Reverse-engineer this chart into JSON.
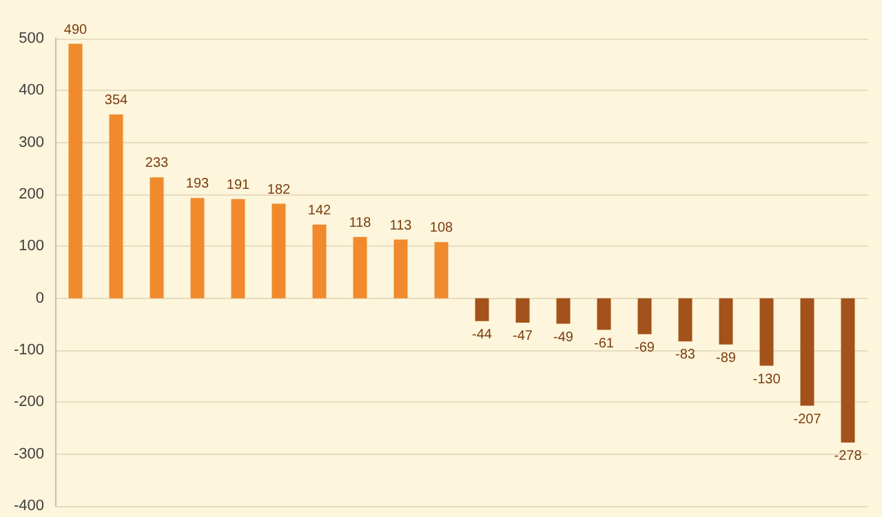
{
  "chart_data": {
    "type": "bar",
    "categories": [
      null,
      null,
      null,
      null,
      null,
      null,
      null,
      null,
      null,
      null,
      null,
      null,
      null,
      null,
      null,
      null,
      null,
      null,
      null,
      null
    ],
    "values": [
      490,
      354,
      233,
      193,
      191,
      182,
      142,
      118,
      113,
      108,
      -44,
      -47,
      -49,
      -61,
      -69,
      -83,
      -89,
      -130,
      -207,
      -278
    ],
    "colors": [
      "#f08a2c",
      "#f08a2c",
      "#f08a2c",
      "#f08a2c",
      "#f08a2c",
      "#f08a2c",
      "#f08a2c",
      "#f08a2c",
      "#f08a2c",
      "#f08a2c",
      "#a2521a",
      "#a2521a",
      "#a2521a",
      "#a2521a",
      "#a2521a",
      "#a2521a",
      "#a2521a",
      "#a2521a",
      "#a2521a",
      "#a2521a"
    ],
    "ylim": [
      -400,
      500
    ],
    "yticks": [
      -400,
      -300,
      -200,
      -100,
      0,
      100,
      200,
      300,
      400,
      500
    ],
    "grid": "y",
    "data_labels": true
  }
}
